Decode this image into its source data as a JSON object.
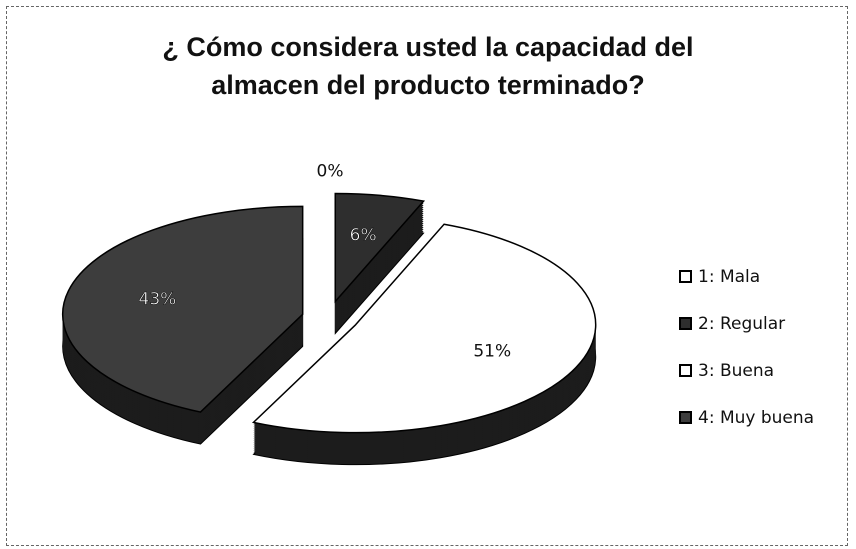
{
  "chart_data": {
    "type": "pie",
    "title": "¿ Cómo considera usted la capacidad del almacen del producto terminado?",
    "categories": [
      "1: Mala",
      "2: Regular",
      "3: Buena",
      "4: Muy buena"
    ],
    "values": [
      0,
      6,
      51,
      43
    ],
    "value_labels": [
      "0%",
      "6%",
      "51%",
      "43%"
    ],
    "colors": [
      "#ffffff",
      "#2e2e2e",
      "#ffffff",
      "#3d3d3d"
    ],
    "legend": "right"
  }
}
